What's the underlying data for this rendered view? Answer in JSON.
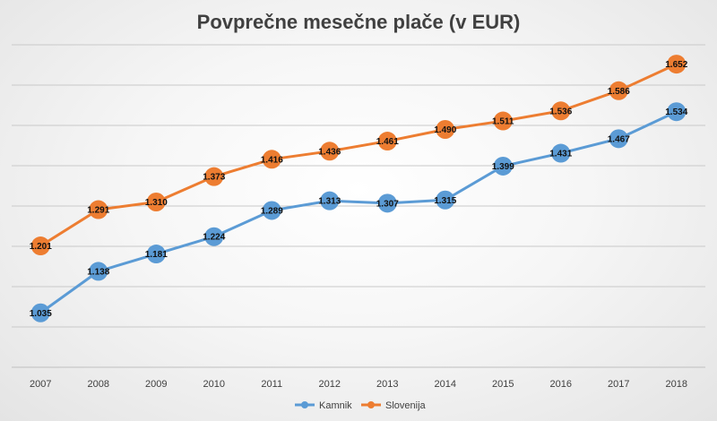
{
  "chart_data": {
    "type": "line",
    "title": "Povprečne mesečne plače (v EUR)",
    "xlabel": "",
    "ylabel": "",
    "categories": [
      "2007",
      "2008",
      "2009",
      "2010",
      "2011",
      "2012",
      "2013",
      "2014",
      "2015",
      "2016",
      "2017",
      "2018"
    ],
    "ylim": [
      900,
      1700
    ],
    "grid": true,
    "y_tick_labels_shown": false,
    "legend_position": "bottom",
    "series": [
      {
        "name": "Kamnik",
        "color": "#5B9BD5",
        "values": [
          1035,
          1138,
          1181,
          1224,
          1289,
          1313,
          1307,
          1315,
          1399,
          1431,
          1467,
          1534
        ],
        "labels": [
          "1.035",
          "1.138",
          "1.181",
          "1.224",
          "1.289",
          "1.313",
          "1.307",
          "1.315",
          "1.399",
          "1.431",
          "1.467",
          "1.534"
        ]
      },
      {
        "name": "Slovenija",
        "color": "#ED7D31",
        "values": [
          1201,
          1291,
          1310,
          1373,
          1416,
          1436,
          1461,
          1490,
          1511,
          1536,
          1586,
          1652
        ],
        "labels": [
          "1.201",
          "1.291",
          "1.310",
          "1.373",
          "1.416",
          "1.436",
          "1.461",
          "1.490",
          "1.511",
          "1.536",
          "1.586",
          "1.652"
        ]
      }
    ]
  }
}
